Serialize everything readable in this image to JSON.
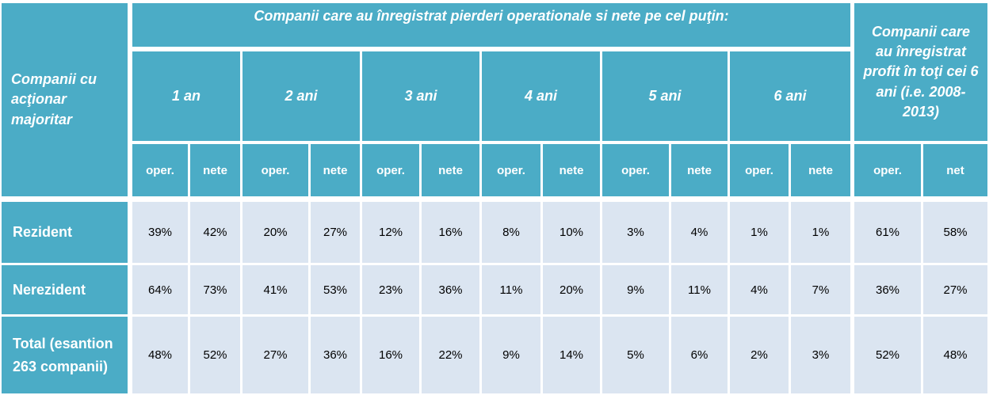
{
  "header": {
    "row_header": "Companii cu acţionar majoritar",
    "losses_group": "Companii care au înregistrat pierderi operationale si nete pe cel puţin:",
    "profit_group": "Companii care au înregistrat profit în toţi cei 6 ani (i.e. 2008-2013)",
    "years": [
      "1 an",
      "2 ani",
      "3 ani",
      "4 ani",
      "5 ani",
      "6 ani"
    ],
    "sub": [
      "oper.",
      "nete",
      "oper.",
      "nete",
      "oper.",
      "nete",
      "oper.",
      "nete",
      "oper.",
      "nete",
      "oper.",
      "nete",
      "oper.",
      "net"
    ]
  },
  "rows": [
    {
      "label": "Rezident",
      "values": [
        "39%",
        "42%",
        "20%",
        "27%",
        "12%",
        "16%",
        "8%",
        "10%",
        "3%",
        "4%",
        "1%",
        "1%",
        "61%",
        "58%"
      ]
    },
    {
      "label": "Nerezident",
      "values": [
        "64%",
        "73%",
        "41%",
        "53%",
        "23%",
        "36%",
        "11%",
        "20%",
        "9%",
        "11%",
        "4%",
        "7%",
        "36%",
        "27%"
      ]
    },
    {
      "label": "Total (esantion 263 companii)",
      "values": [
        "48%",
        "52%",
        "27%",
        "36%",
        "16%",
        "22%",
        "9%",
        "14%",
        "5%",
        "6%",
        "2%",
        "3%",
        "52%",
        "48%"
      ]
    }
  ]
}
